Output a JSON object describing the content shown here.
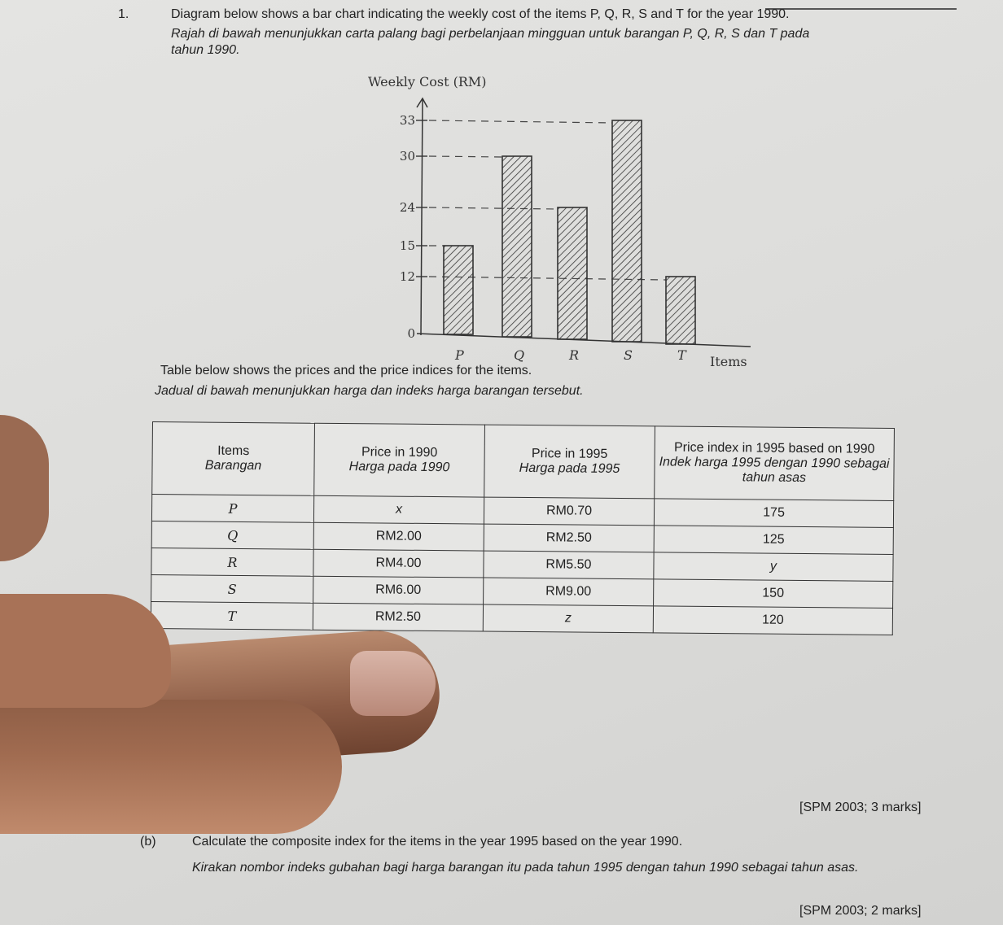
{
  "question": {
    "number": "1.",
    "text_en": "Diagram below shows a bar chart indicating the weekly cost of the items P, Q, R, S and T for the year 1990.",
    "text_ms_line1": "Rajah di bawah menunjukkan carta palang bagi perbelanjaan mingguan untuk barangan P, Q, R, S dan T pada",
    "text_ms_line2": "tahun 1990."
  },
  "chart_data": {
    "type": "bar",
    "ylabel": "Weekly Cost (RM)",
    "xlabel": "Items",
    "categories": [
      "P",
      "Q",
      "R",
      "S",
      "T"
    ],
    "values": [
      15,
      30,
      24,
      33,
      12
    ],
    "yticks": [
      0,
      12,
      15,
      24,
      30,
      33
    ],
    "ylim": [
      0,
      33
    ],
    "grid": "dashed reference lines at tick values",
    "pattern": "diagonal hatching"
  },
  "table_intro": {
    "en": "Table below shows the prices and the price indices for the items.",
    "ms": "Jadual di bawah menunjukkan harga dan indeks harga barangan tersebut."
  },
  "table": {
    "headers": [
      {
        "en": "Items",
        "ms": "Barangan"
      },
      {
        "en": "Price in 1990",
        "ms": "Harga pada 1990"
      },
      {
        "en": "Price in 1995",
        "ms": "Harga pada 1995"
      },
      {
        "en": "Price index in 1995 based on 1990",
        "ms": "Indek harga 1995 dengan 1990 sebagai tahun asas"
      }
    ],
    "rows": [
      [
        "P",
        "x",
        "RM0.70",
        "175"
      ],
      [
        "Q",
        "RM2.00",
        "RM2.50",
        "125"
      ],
      [
        "R",
        "RM4.00",
        "RM5.50",
        "y"
      ],
      [
        "S",
        "RM6.00",
        "RM9.00",
        "150"
      ],
      [
        "T",
        "RM2.50",
        "z",
        "120"
      ]
    ]
  },
  "part_a_marks": "[SPM 2003; 3 marks]",
  "part_b": {
    "label": "(b)",
    "text_en": "Calculate the composite index for the items in the year 1995 based on the year 1990.",
    "text_ms": "Kirakan nombor indeks gubahan bagi harga barangan itu pada tahun 1995 dengan tahun 1990 sebagai tahun asas.",
    "marks": "[SPM 2003; 2 marks]"
  }
}
